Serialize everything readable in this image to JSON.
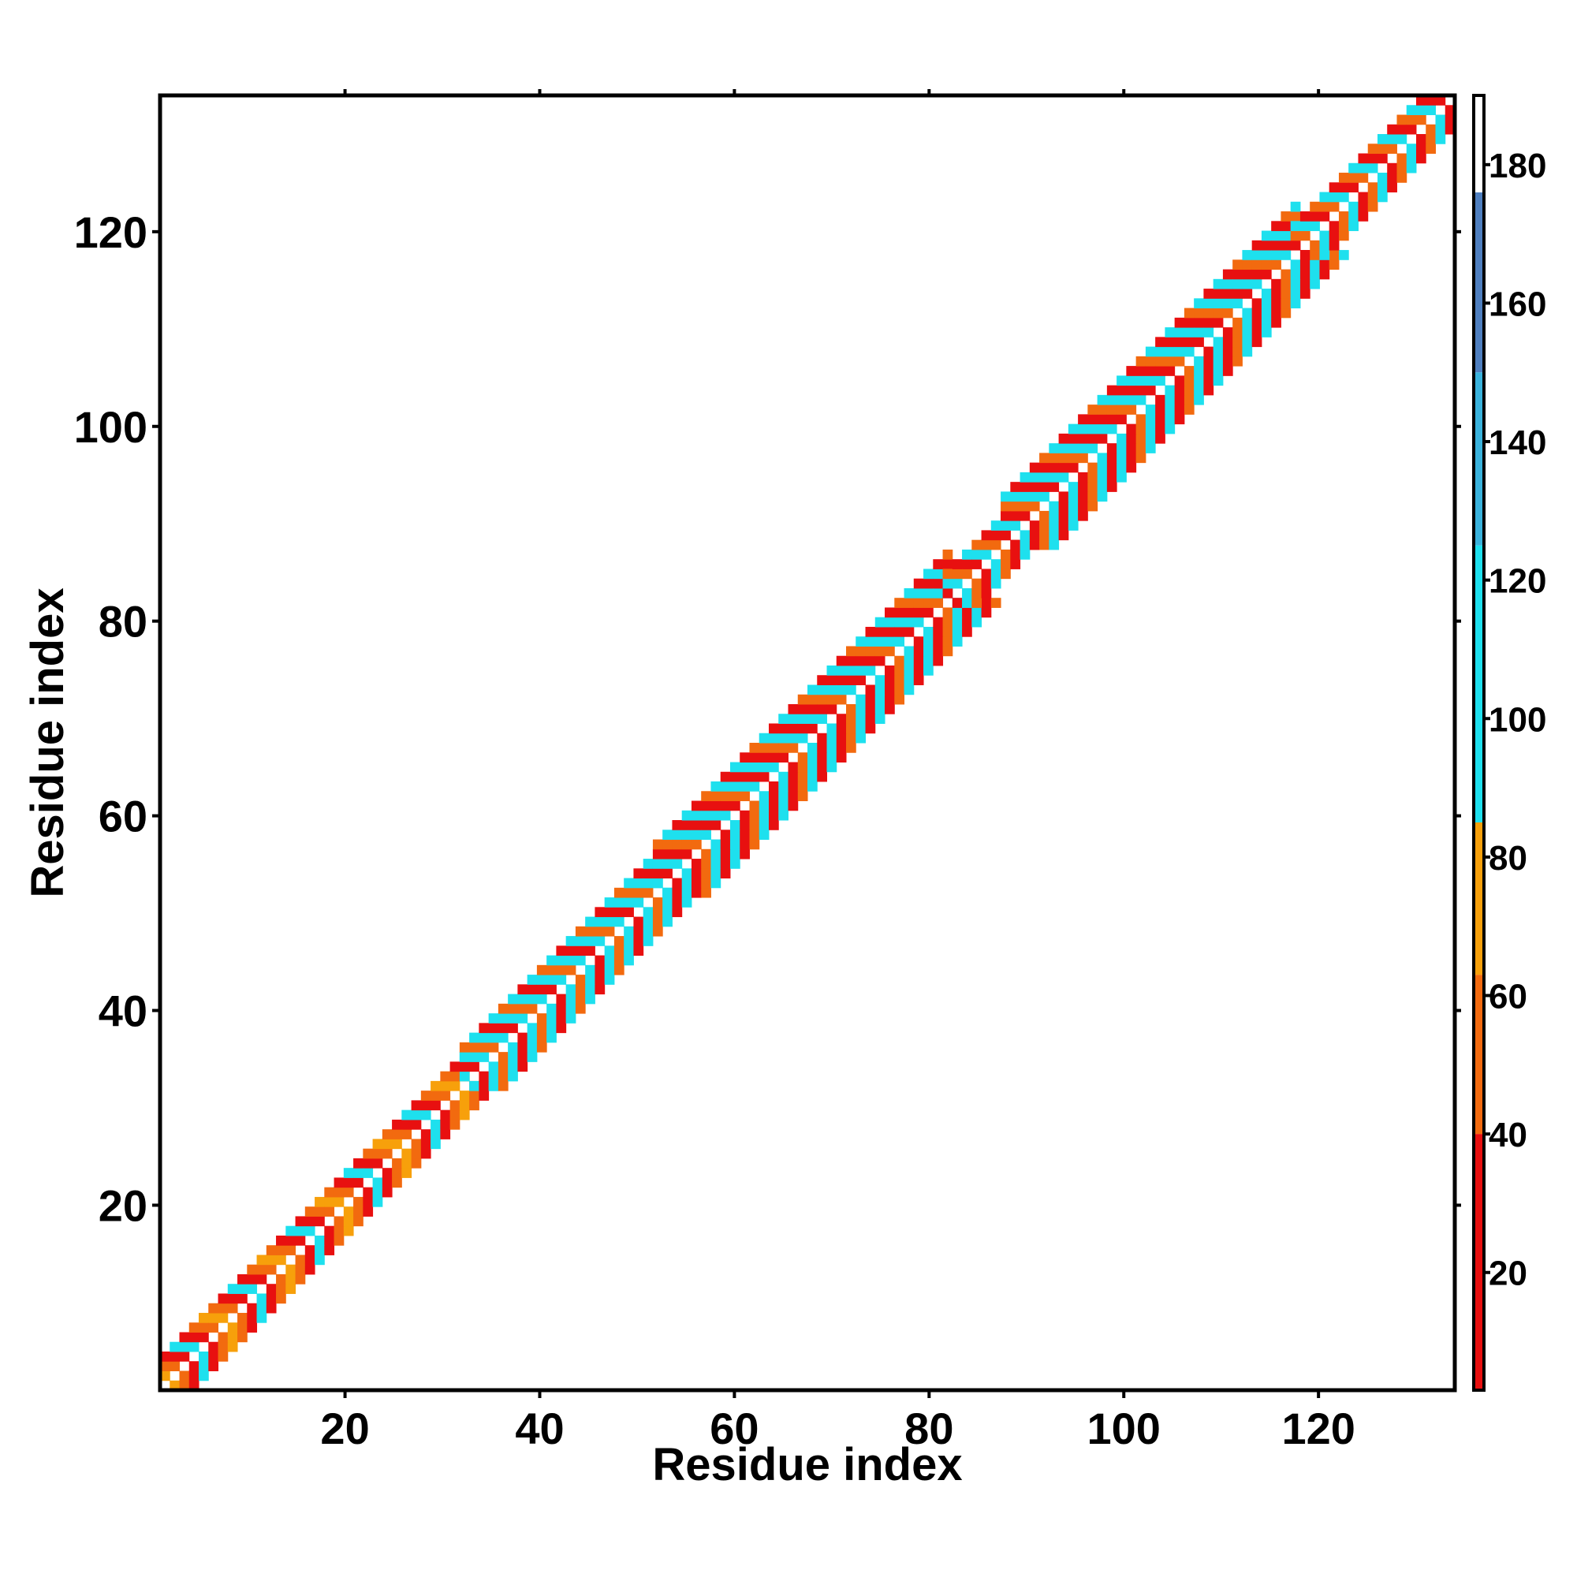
{
  "chart_data": {
    "type": "heatmap",
    "title": "",
    "xlabel": "Residue index",
    "ylabel": "Residue index",
    "xlim": [
      1,
      134
    ],
    "ylim": [
      1,
      134
    ],
    "x_ticks": [
      20,
      40,
      60,
      80,
      100,
      120
    ],
    "y_ticks": [
      20,
      40,
      60,
      80,
      100,
      120
    ],
    "n_residues": 134,
    "colorbar": {
      "range": [
        3,
        190
      ],
      "ticks": [
        20,
        40,
        60,
        80,
        100,
        120,
        140,
        160,
        180
      ],
      "stops": [
        {
          "from": 3,
          "to": 40,
          "color": "#e81010"
        },
        {
          "from": 40,
          "to": 63,
          "color": "#f26a0f"
        },
        {
          "from": 63,
          "to": 85,
          "color": "#f7a00b"
        },
        {
          "from": 85,
          "to": 125,
          "color": "#1ee0ee"
        },
        {
          "from": 125,
          "to": 150,
          "color": "#3ab2dc"
        },
        {
          "from": 150,
          "to": 176,
          "color": "#4f7fbf"
        },
        {
          "from": 176,
          "to": 190,
          "color": "#ffffff"
        }
      ]
    },
    "segments": [
      {
        "from": 1,
        "to": 32,
        "band": 3,
        "pattern": [
          "red",
          "orange",
          "gold",
          "orange",
          "red",
          "cyan"
        ]
      },
      {
        "from": 32,
        "to": 52,
        "band": 4,
        "pattern": [
          "orange",
          "cyan",
          "red",
          "cyan"
        ]
      },
      {
        "from": 52,
        "to": 82,
        "band": 5,
        "pattern": [
          "cyan",
          "red",
          "orange",
          "cyan",
          "red"
        ]
      },
      {
        "from": 82,
        "to": 88,
        "band": 3,
        "pattern": [
          "cyan",
          "orange",
          "red"
        ]
      },
      {
        "from": 88,
        "to": 118,
        "band": 5,
        "pattern": [
          "cyan",
          "red",
          "orange",
          "cyan",
          "red"
        ]
      },
      {
        "from": 118,
        "to": 134,
        "band": 3,
        "pattern": [
          "orange",
          "cyan",
          "red"
        ]
      }
    ],
    "category_colors": {
      "red": "#e81010",
      "orange": "#f26a0f",
      "gold": "#f7a00b",
      "cyan": "#1ee0ee",
      "blue": "#3ab2dc"
    }
  }
}
